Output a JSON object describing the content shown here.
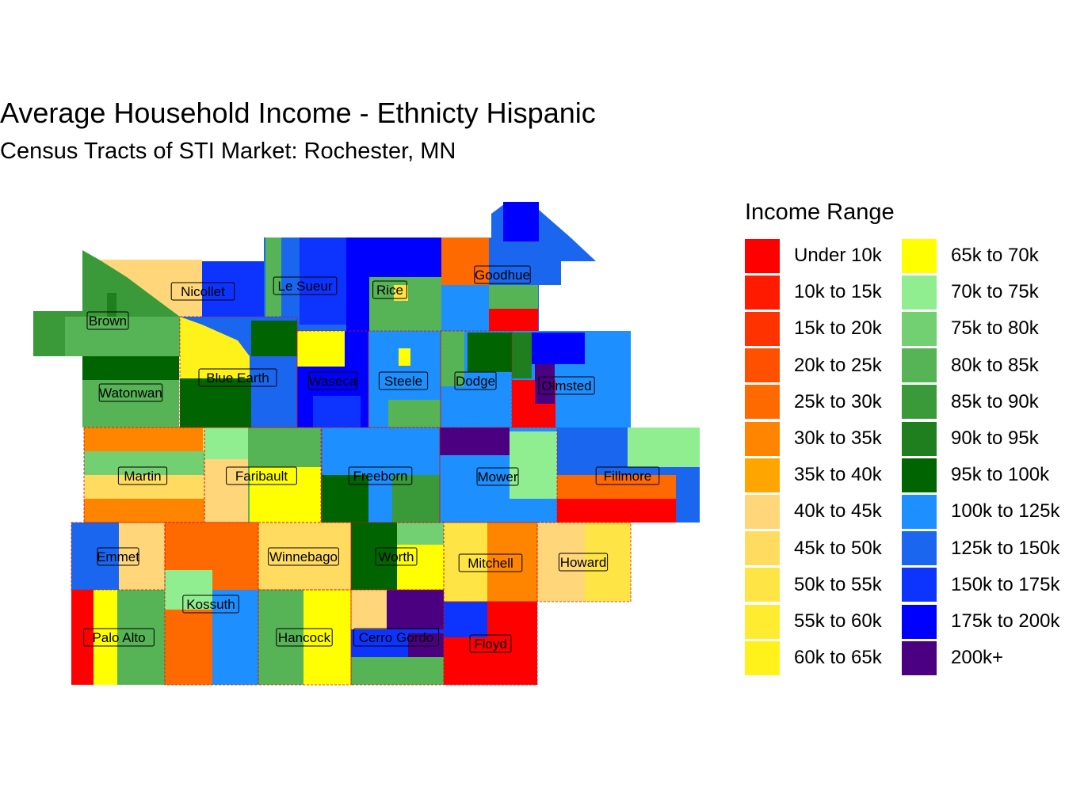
{
  "title": "Average Household Income - Ethnicty Hispanic",
  "subtitle": "Census Tracts of STI Market: Rochester, MN",
  "legend": {
    "title": "Income Range",
    "items": [
      {
        "label": "Under 10k",
        "color": "#ff0000"
      },
      {
        "label": "10k to 15k",
        "color": "#ff1a00"
      },
      {
        "label": "15k to 20k",
        "color": "#ff3300"
      },
      {
        "label": "20k to 25k",
        "color": "#ff5000"
      },
      {
        "label": "25k to 30k",
        "color": "#ff6a00"
      },
      {
        "label": "30k to 35k",
        "color": "#ff8400"
      },
      {
        "label": "35k to 40k",
        "color": "#ffa500"
      },
      {
        "label": "40k to 45k",
        "color": "#ffd67a"
      },
      {
        "label": "45k to 50k",
        "color": "#ffdc60"
      },
      {
        "label": "50k to 55k",
        "color": "#ffe445"
      },
      {
        "label": "55k to 60k",
        "color": "#ffeb30"
      },
      {
        "label": "60k to 65k",
        "color": "#fff21a"
      },
      {
        "label": "65k to 70k",
        "color": "#ffff00"
      },
      {
        "label": "70k to 75k",
        "color": "#90ee90"
      },
      {
        "label": "75k to 80k",
        "color": "#72cf72"
      },
      {
        "label": "80k to 85k",
        "color": "#56b356"
      },
      {
        "label": "85k to 90k",
        "color": "#3a9a3a"
      },
      {
        "label": "90k to 95k",
        "color": "#1f7f1f"
      },
      {
        "label": "95k to 100k",
        "color": "#006400"
      },
      {
        "label": "100k to 125k",
        "color": "#1e8fff"
      },
      {
        "label": "125k to 150k",
        "color": "#1a66ee"
      },
      {
        "label": "150k to 175k",
        "color": "#0d33ff"
      },
      {
        "label": "175k to 200k",
        "color": "#0000ff"
      },
      {
        "label": "200k+",
        "color": "#4b0082"
      }
    ]
  },
  "counties": [
    {
      "name": "Brown"
    },
    {
      "name": "Nicollet"
    },
    {
      "name": "Le Sueur"
    },
    {
      "name": "Rice"
    },
    {
      "name": "Goodhue"
    },
    {
      "name": "Watonwan"
    },
    {
      "name": "Blue Earth"
    },
    {
      "name": "Waseca"
    },
    {
      "name": "Steele"
    },
    {
      "name": "Dodge"
    },
    {
      "name": "Olmsted"
    },
    {
      "name": "Martin"
    },
    {
      "name": "Faribault"
    },
    {
      "name": "Freeborn"
    },
    {
      "name": "Mower"
    },
    {
      "name": "Fillmore"
    },
    {
      "name": "Emmet"
    },
    {
      "name": "Winnebago"
    },
    {
      "name": "Worth"
    },
    {
      "name": "Mitchell"
    },
    {
      "name": "Howard"
    },
    {
      "name": "Kossuth"
    },
    {
      "name": "Palo Alto"
    },
    {
      "name": "Hancock"
    },
    {
      "name": "Cerro Gordo"
    },
    {
      "name": "Floyd"
    }
  ]
}
